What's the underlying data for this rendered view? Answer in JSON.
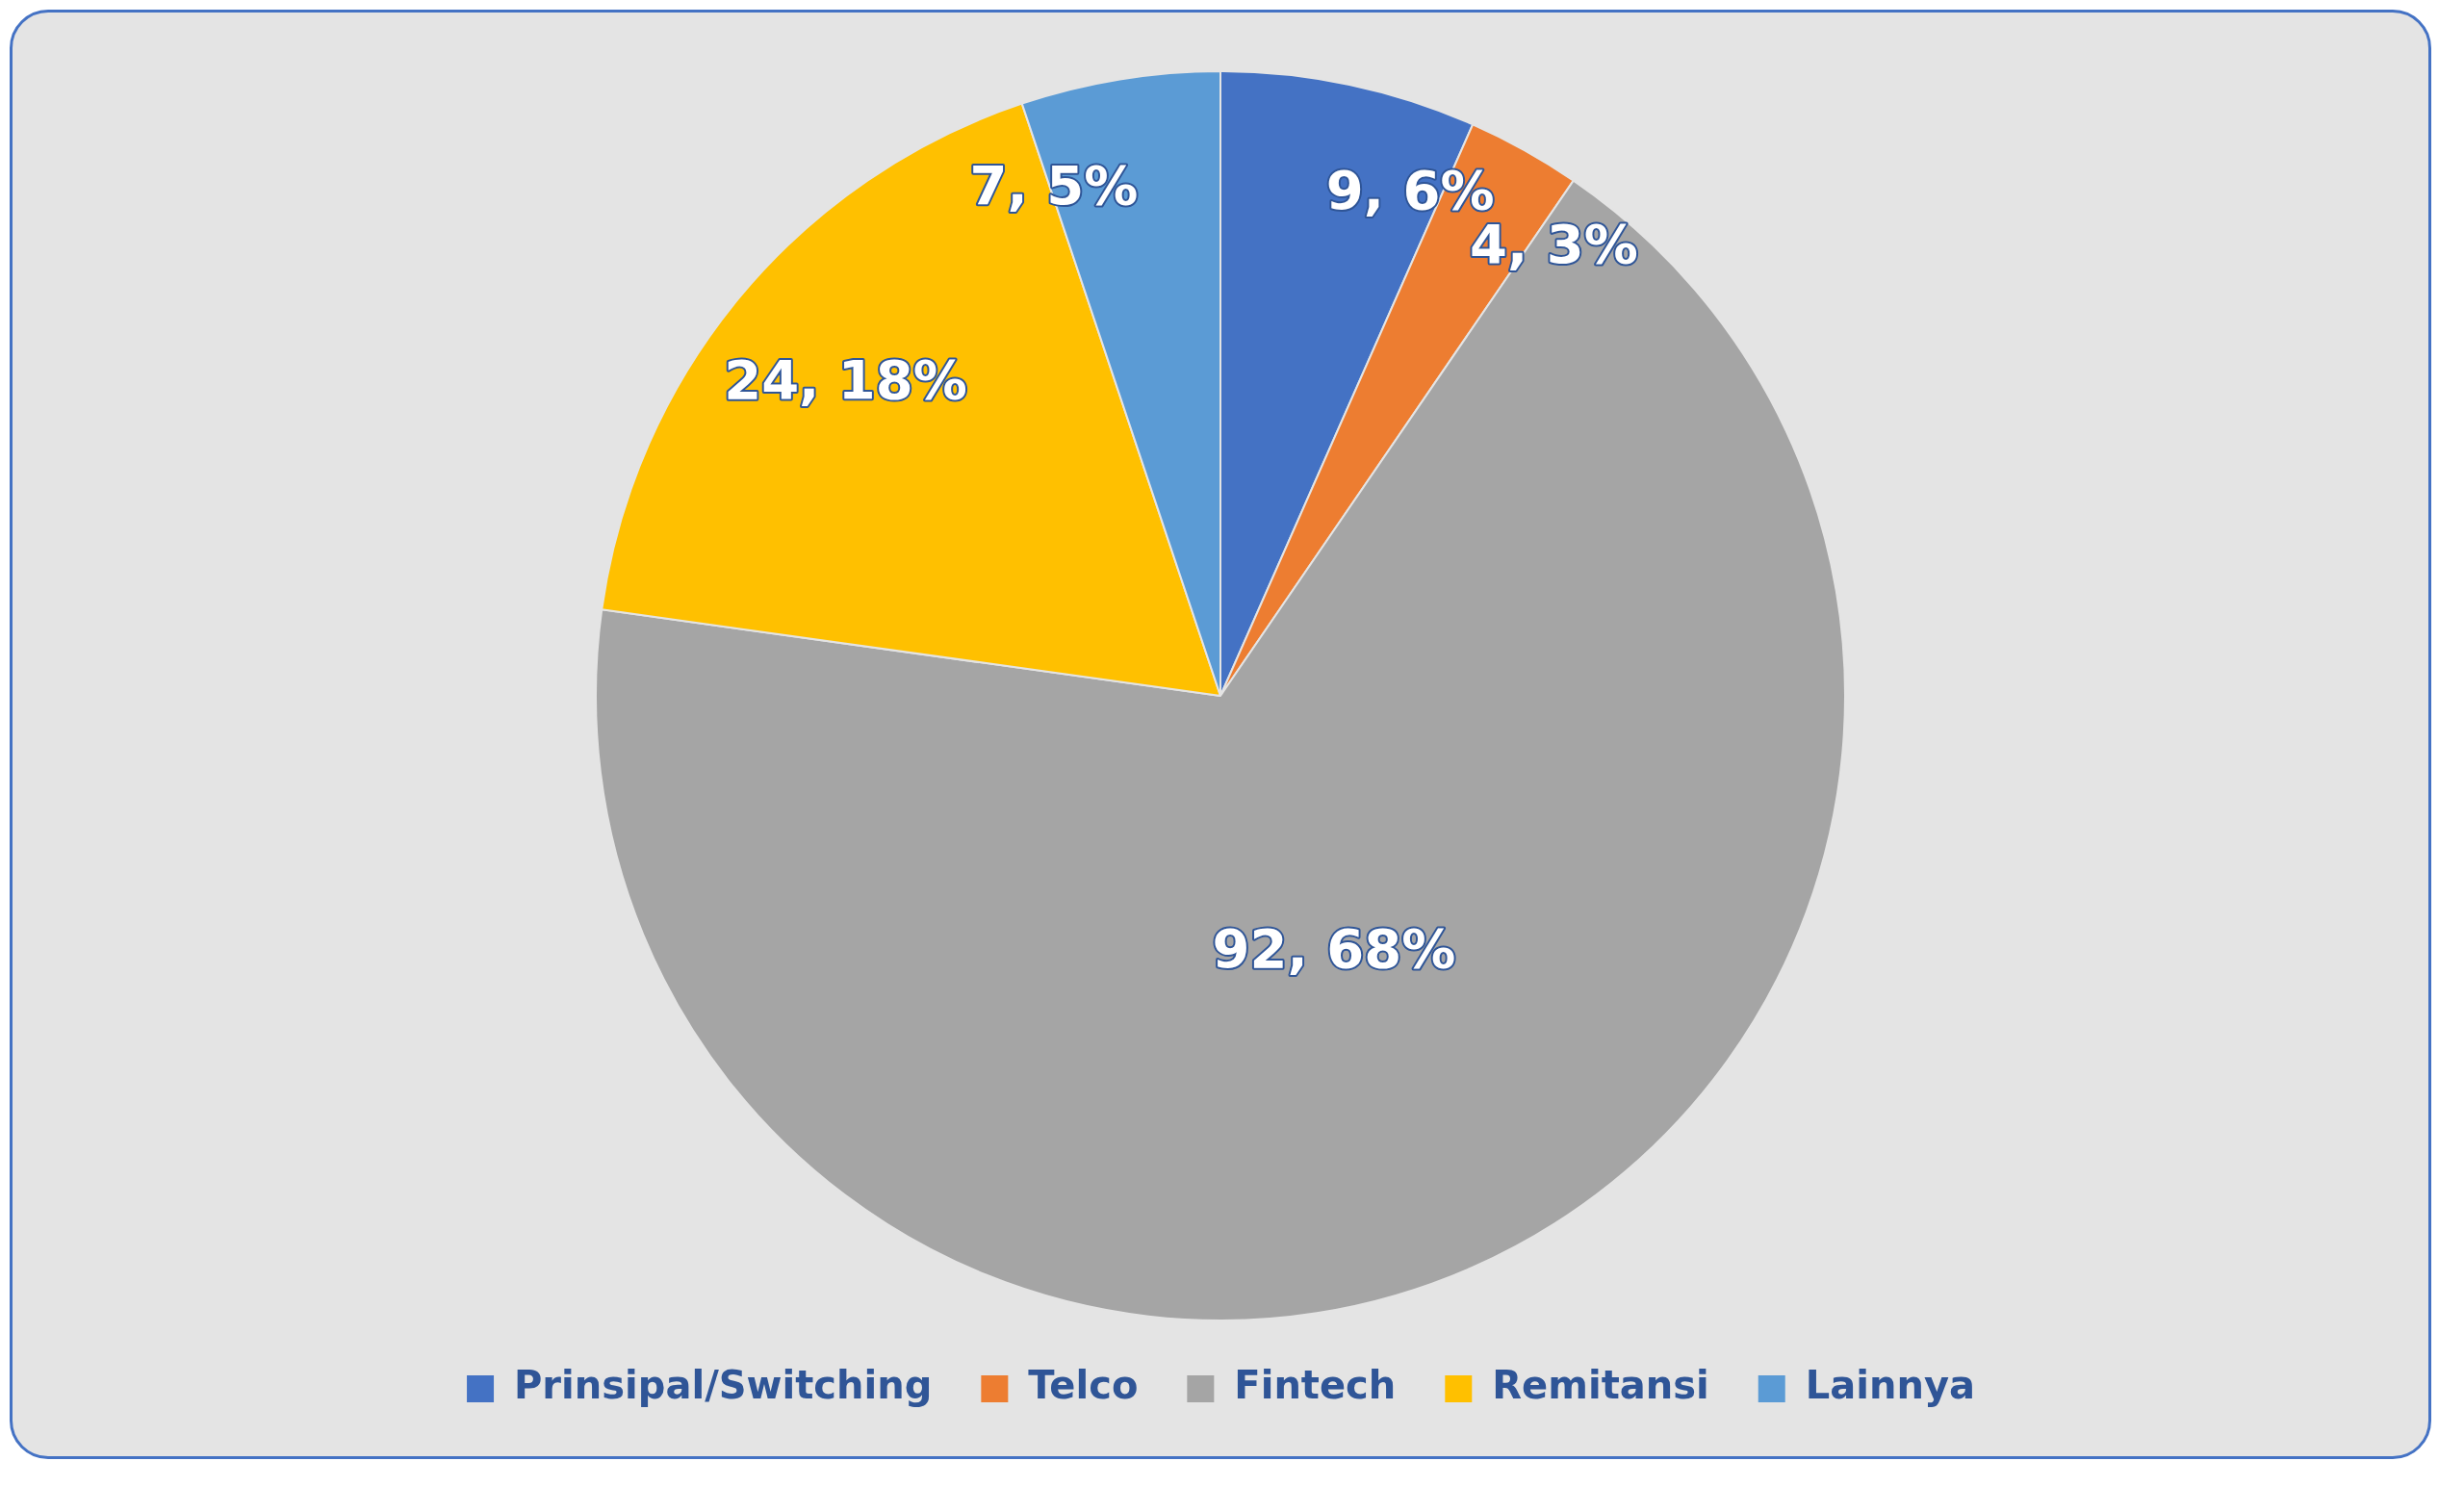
{
  "chart_data": {
    "type": "pie",
    "categories": [
      "Prinsipal/Switching",
      "Telco",
      "Fintech",
      "Remitansi",
      "Lainnya"
    ],
    "values": [
      9,
      4,
      92,
      24,
      7
    ],
    "value_labels": [
      "9, 6%",
      "4, 3%",
      "92, 68%",
      "24, 18%",
      "7, 5%"
    ],
    "colors": [
      "#4472c4",
      "#ed7d31",
      "#a5a5a5",
      "#ffc000",
      "#5b9bd5"
    ],
    "legend": "bottom"
  }
}
